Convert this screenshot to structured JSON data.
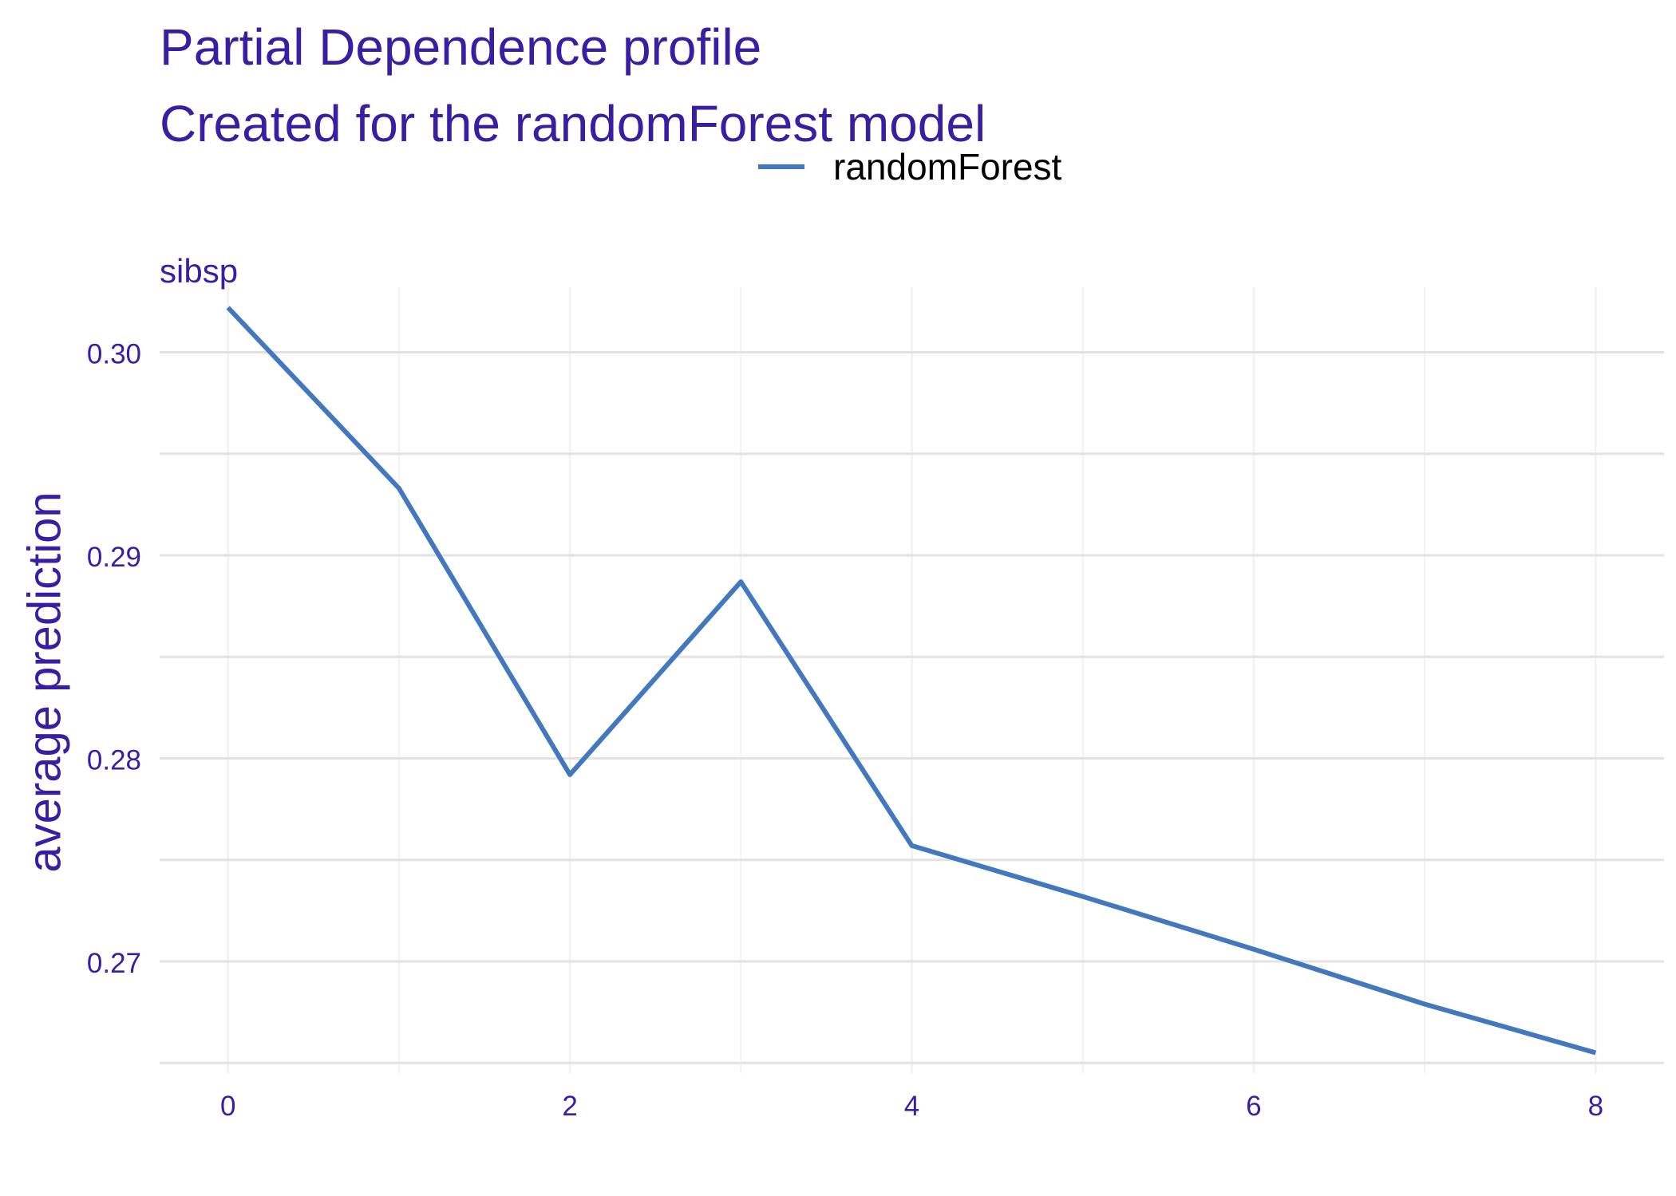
{
  "header": {
    "title": "Partial Dependence profile",
    "subtitle": "Created for the randomForest model"
  },
  "legend": {
    "label": "randomForest"
  },
  "panel": {
    "strip_label": "sibsp"
  },
  "colors": {
    "text": "#371ea3",
    "line": "#4378bf",
    "grid_major": "#e2e2e2",
    "grid_minor": "#f2f2f2"
  },
  "chart_data": {
    "type": "line",
    "title": "Partial Dependence profile",
    "subtitle": "Created for the randomForest model",
    "xlabel": "",
    "ylabel": "average prediction",
    "facet": "sibsp",
    "xlim": [
      -0.4,
      8.4
    ],
    "ylim": [
      0.2645,
      0.3032
    ],
    "x_ticks": [
      0,
      2,
      4,
      6,
      8
    ],
    "x_minor": [
      1,
      3,
      5,
      7
    ],
    "y_ticks": [
      0.27,
      0.28,
      0.29,
      0.3
    ],
    "y_tick_labels": [
      "0.27",
      "0.28",
      "0.29",
      "0.30"
    ],
    "y_minor": [
      0.265,
      0.275,
      0.285,
      0.295
    ],
    "grid": true,
    "legend_position": "top",
    "series": [
      {
        "name": "randomForest",
        "x": [
          0,
          1,
          2,
          3,
          4,
          5,
          6,
          7,
          8
        ],
        "values": [
          0.3022,
          0.2933,
          0.2792,
          0.2887,
          0.2757,
          0.2732,
          0.2706,
          0.2679,
          0.2655
        ]
      }
    ]
  }
}
